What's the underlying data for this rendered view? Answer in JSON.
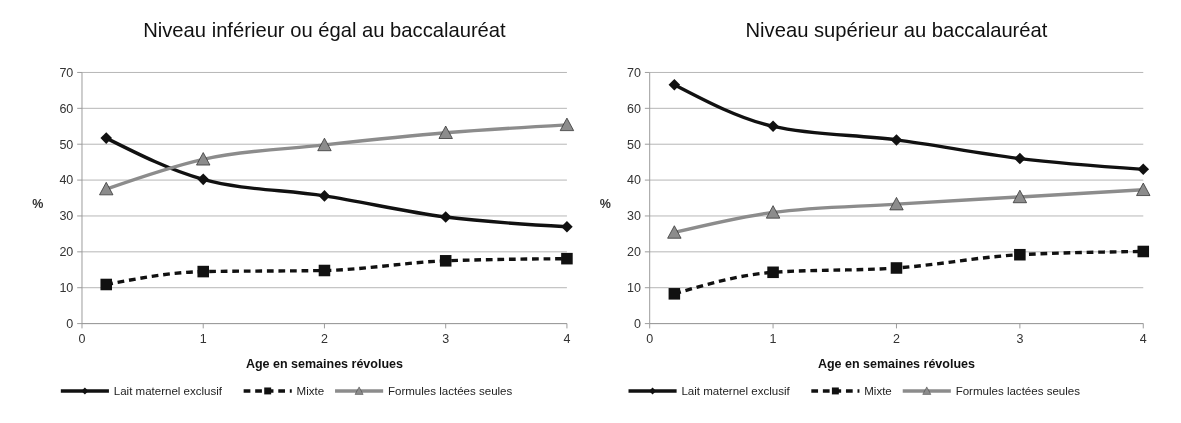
{
  "chart_data": [
    {
      "type": "line",
      "title": "Niveau inférieur ou égal au baccalauréat",
      "xlabel": "Age en semaines révolues",
      "ylabel": "%",
      "x": [
        0.2,
        1,
        2,
        3,
        4
      ],
      "xlim": [
        0,
        4
      ],
      "xticks": [
        0,
        1,
        2,
        3,
        4
      ],
      "ylim": [
        0,
        70
      ],
      "yticks": [
        0,
        10,
        20,
        30,
        40,
        50,
        60,
        70
      ],
      "grid": "y",
      "legend": "bottom",
      "series": [
        {
          "name": "Lait maternel exclusif",
          "color": "#111111",
          "marker": "diamond",
          "line_style": "solid",
          "values": [
            51.7,
            40.2,
            35.6,
            29.7,
            27
          ]
        },
        {
          "name": "Mixte",
          "color": "#111111",
          "marker": "square",
          "line_style": "dashed",
          "values": [
            10.9,
            14.5,
            14.8,
            17.5,
            18.1
          ]
        },
        {
          "name": "Formules lactées seules",
          "color": "#8c8c8c",
          "marker": "triangle",
          "line_style": "solid",
          "values": [
            37.5,
            45.8,
            49.8,
            53.2,
            55.4
          ]
        }
      ]
    },
    {
      "type": "line",
      "title": "Niveau supérieur au baccalauréat",
      "xlabel": "Age en semaines révolues",
      "ylabel": "%",
      "x": [
        0.2,
        1,
        2,
        3,
        4
      ],
      "xlim": [
        0,
        4
      ],
      "xticks": [
        0,
        1,
        2,
        3,
        4
      ],
      "ylim": [
        0,
        70
      ],
      "yticks": [
        0,
        10,
        20,
        30,
        40,
        50,
        60,
        70
      ],
      "grid": "y",
      "legend": "bottom",
      "series": [
        {
          "name": "Lait maternel exclusif",
          "color": "#111111",
          "marker": "diamond",
          "line_style": "solid",
          "values": [
            66.6,
            55,
            51.2,
            46,
            43
          ]
        },
        {
          "name": "Mixte",
          "color": "#111111",
          "marker": "square",
          "line_style": "dashed",
          "values": [
            8.3,
            14.3,
            15.5,
            19.2,
            20.1
          ]
        },
        {
          "name": "Formules lactées seules",
          "color": "#8c8c8c",
          "marker": "triangle",
          "line_style": "solid",
          "values": [
            25.4,
            31,
            33.3,
            35.3,
            37.3
          ]
        }
      ]
    }
  ]
}
